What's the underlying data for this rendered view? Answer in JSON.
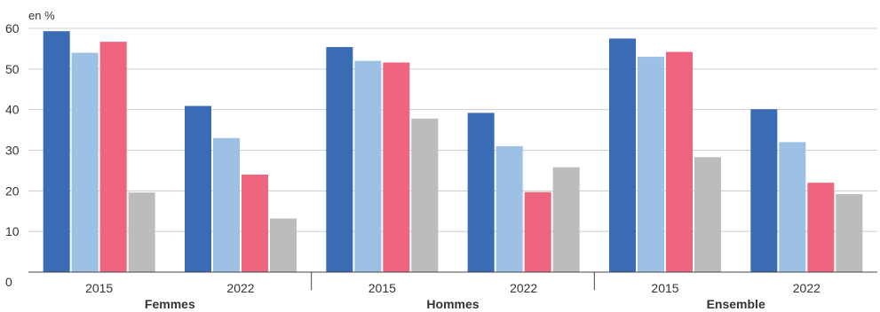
{
  "chart_data": {
    "type": "bar",
    "unit_label": "en %",
    "ylim": [
      0,
      60
    ],
    "y_ticks": [
      "0",
      "10",
      "20",
      "30",
      "40",
      "50",
      "60"
    ],
    "grid": true,
    "groups": [
      {
        "label": "Femmes",
        "categories": [
          {
            "label": "2015",
            "values": [
              59.3,
              54.0,
              56.7,
              19.6
            ]
          },
          {
            "label": "2022",
            "values": [
              40.9,
              33.0,
              24.0,
              13.2
            ]
          }
        ]
      },
      {
        "label": "Hommes",
        "categories": [
          {
            "label": "2015",
            "values": [
              55.4,
              52.0,
              51.6,
              37.8
            ]
          },
          {
            "label": "2022",
            "values": [
              39.2,
              31.0,
              19.7,
              25.8
            ]
          }
        ]
      },
      {
        "label": "Ensemble",
        "categories": [
          {
            "label": "2015",
            "values": [
              57.5,
              53.0,
              54.2,
              28.3
            ]
          },
          {
            "label": "2022",
            "values": [
              40.1,
              32.0,
              22.0,
              19.2
            ]
          }
        ]
      }
    ],
    "series_colors": [
      "#3a6bb5",
      "#9dc0e5",
      "#ef6580",
      "#bcbcbf"
    ],
    "grid_color": "#cccccc",
    "axis_color": "#444444"
  }
}
